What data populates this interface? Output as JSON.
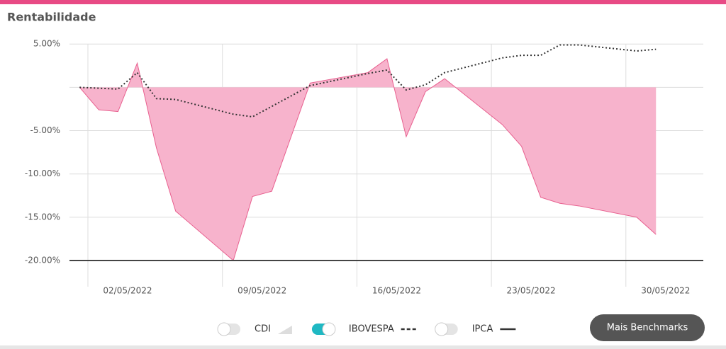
{
  "chart_data": {
    "type": "area",
    "title": "Rentabilidade",
    "ylim": [
      -20,
      6
    ],
    "yticks": [
      {
        "value": 5,
        "label": "5.00%"
      },
      0,
      {
        "value": -5,
        "label": "-5.00%"
      },
      {
        "value": -10,
        "label": "-10.00%"
      },
      {
        "value": -15,
        "label": "-15.00%"
      },
      {
        "value": -20,
        "label": "-20.00%"
      }
    ],
    "xticks": [
      "02/05/2022",
      "09/05/2022",
      "16/05/2022",
      "23/05/2022",
      "30/05/2022"
    ],
    "grid": true,
    "series": [
      {
        "style": "area",
        "color": "#e8608f",
        "fill": "#f7b3cc",
        "x": [
          "30/04/2022",
          "01/05/2022",
          "02/05/2022",
          "03/05/2022",
          "04/05/2022",
          "05/05/2022",
          "08/05/2022",
          "09/05/2022",
          "10/05/2022",
          "12/05/2022",
          "15/05/2022",
          "16/05/2022",
          "17/05/2022",
          "18/05/2022",
          "19/05/2022",
          "22/05/2022",
          "23/05/2022",
          "24/05/2022",
          "25/05/2022",
          "26/05/2022",
          "29/05/2022",
          "30/05/2022"
        ],
        "values": [
          0,
          -2.6,
          -2.8,
          2.8,
          -7.0,
          -14.3,
          -20.0,
          -12.6,
          -12.0,
          0.5,
          1.7,
          3.3,
          -5.7,
          -0.5,
          1.0,
          -4.3,
          -6.8,
          -12.7,
          -13.4,
          -13.7,
          -15.0,
          -17.0
        ]
      },
      {
        "style": "dotted",
        "color": "#333333",
        "x": [
          "30/04/2022",
          "02/05/2022",
          "03/05/2022",
          "04/05/2022",
          "05/05/2022",
          "08/05/2022",
          "09/05/2022",
          "12/05/2022",
          "15/05/2022",
          "16/05/2022",
          "17/05/2022",
          "18/05/2022",
          "19/05/2022",
          "22/05/2022",
          "23/05/2022",
          "24/05/2022",
          "25/05/2022",
          "26/05/2022",
          "29/05/2022",
          "30/05/2022"
        ],
        "values": [
          0,
          -0.2,
          1.7,
          -1.3,
          -1.4,
          -3.1,
          -3.4,
          0.2,
          1.6,
          2.0,
          -0.3,
          0.3,
          1.7,
          3.4,
          3.7,
          3.7,
          4.9,
          4.9,
          4.2,
          4.4
        ]
      }
    ],
    "legend": [
      {
        "name": "CDI",
        "enabled": false,
        "icon": "area"
      },
      {
        "name": "IBOVESPA",
        "enabled": true,
        "icon": "dashed"
      },
      {
        "name": "IPCA",
        "enabled": false,
        "icon": "line"
      }
    ],
    "button": "Mais Benchmarks"
  }
}
